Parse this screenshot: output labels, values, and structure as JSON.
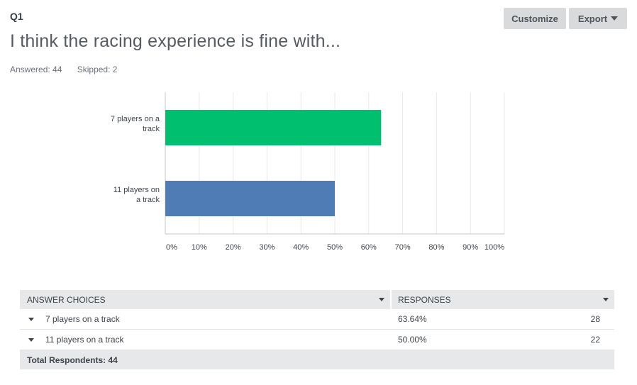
{
  "question": {
    "number": "Q1",
    "title": "I think the racing experience is fine with...",
    "answered": "Answered: 44",
    "skipped": "Skipped: 2"
  },
  "toolbar": {
    "customize_label": "Customize",
    "export_label": "Export"
  },
  "colors": {
    "bar_1": "#00bf6f",
    "bar_2": "#507cb6",
    "gridline": "#e7e8e9",
    "axis": "#c6c8ca"
  },
  "chart_data": {
    "type": "bar",
    "orientation": "horizontal",
    "categories": [
      [
        "7 players on a",
        "track"
      ],
      [
        "11 players on",
        "a track"
      ]
    ],
    "values": [
      63.64,
      50.0
    ],
    "xlim": [
      0,
      100
    ],
    "xticks": [
      "0%",
      "10%",
      "20%",
      "30%",
      "40%",
      "50%",
      "60%",
      "70%",
      "80%",
      "90%",
      "100%"
    ],
    "grid": true
  },
  "table": {
    "header": {
      "choice": "ANSWER CHOICES",
      "responses": "RESPONSES"
    },
    "rows": [
      {
        "choice": "7 players on a track",
        "percent": "63.64%",
        "count": "28"
      },
      {
        "choice": "11 players on a track",
        "percent": "50.00%",
        "count": "22"
      }
    ],
    "total": "Total Respondents: 44"
  }
}
